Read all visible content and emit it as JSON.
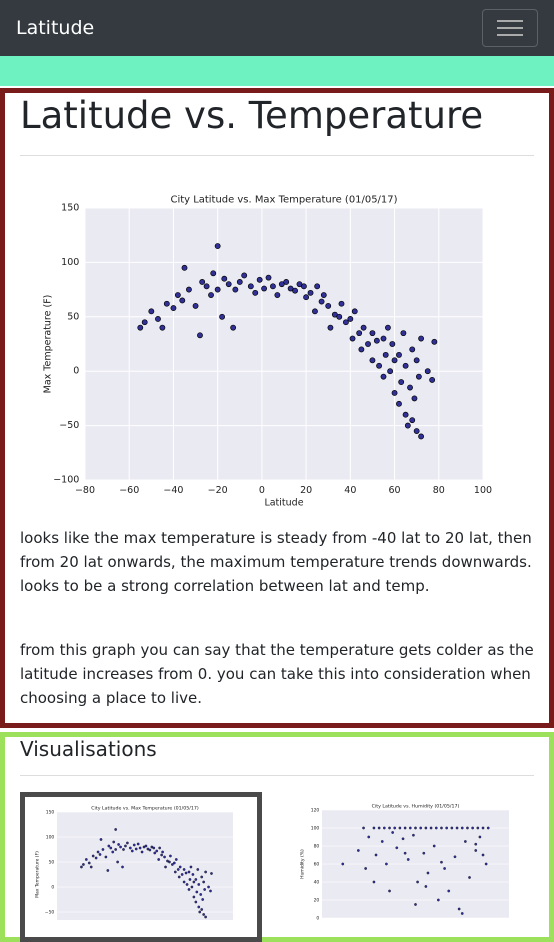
{
  "navbar": {
    "brand": "Latitude"
  },
  "section": {
    "heading": "Latitude vs. Temperature",
    "paragraphs": [
      "looks like the max temperature is steady from -40 lat to 20 lat, then from 20 lat onwards, the maximum temperature trends downwards. looks to be a strong correlation between lat and temp.",
      "from this graph you can say that the temperature gets colder as the latitude increases from 0. you can take this into consideration when choosing a place to live."
    ],
    "chart": {
      "type": "scatter",
      "title": "City Latitude vs. Max Temperature (01/05/17)",
      "xlabel": "Latitude",
      "ylabel": "Max Temperature (F)",
      "color": "#1c1c8c",
      "xlim": [
        -80,
        100
      ],
      "ylim": [
        -100,
        150
      ],
      "xticks": [
        {
          "value": -80,
          "label": "−80"
        },
        {
          "value": -60,
          "label": "−60"
        },
        {
          "value": -40,
          "label": "−40"
        },
        {
          "value": -20,
          "label": "−20"
        },
        0,
        20,
        40,
        60,
        80,
        100
      ],
      "yticks": [
        {
          "value": -100,
          "label": "−100"
        },
        {
          "value": -50,
          "label": "−50"
        },
        0,
        50,
        100,
        150
      ],
      "grid": true,
      "x": [
        -55,
        -53,
        -50,
        -47,
        -45,
        -43,
        -40,
        -38,
        -36,
        -35,
        -33,
        -30,
        -28,
        -27,
        -25,
        -23,
        -22,
        -20,
        -20,
        -18,
        -17,
        -15,
        -13,
        -12,
        -10,
        -8,
        -5,
        -3,
        -1,
        1,
        3,
        5,
        7,
        9,
        11,
        13,
        15,
        17,
        19,
        20,
        22,
        24,
        25,
        27,
        28,
        30,
        31,
        33,
        35,
        36,
        38,
        40,
        41,
        42,
        44,
        45,
        46,
        48,
        50,
        50,
        52,
        53,
        55,
        55,
        56,
        57,
        58,
        59,
        60,
        60,
        62,
        62,
        63,
        64,
        65,
        65,
        66,
        67,
        68,
        68,
        69,
        70,
        70,
        71,
        72,
        72,
        75,
        77,
        78
      ],
      "values": [
        40,
        45,
        55,
        48,
        40,
        62,
        58,
        70,
        65,
        95,
        75,
        60,
        33,
        82,
        78,
        70,
        90,
        115,
        75,
        50,
        85,
        80,
        40,
        75,
        82,
        88,
        78,
        72,
        84,
        76,
        86,
        78,
        70,
        80,
        82,
        76,
        74,
        80,
        78,
        68,
        72,
        55,
        78,
        64,
        70,
        60,
        40,
        52,
        50,
        62,
        45,
        48,
        30,
        55,
        35,
        20,
        40,
        25,
        10,
        35,
        28,
        5,
        30,
        -5,
        15,
        40,
        0,
        25,
        -20,
        10,
        -30,
        15,
        -10,
        35,
        -40,
        5,
        -50,
        -15,
        20,
        -45,
        -25,
        10,
        -55,
        -5,
        -60,
        30,
        0,
        -8,
        27
      ]
    }
  },
  "visualisations": {
    "heading": "Visualisations",
    "thumbnails": [
      {
        "type": "scatter",
        "title": "City Latitude vs. Max Temperature (01/05/17)",
        "ylabel": "Max Temperature (F)",
        "color": "#1c1c8c",
        "xlim": [
          -80,
          100
        ],
        "ylim": [
          -100,
          150
        ],
        "yticks": [
          {
            "value": -50,
            "label": "−50"
          },
          0,
          50,
          100,
          150
        ]
      },
      {
        "type": "scatter",
        "title": "City Latitude vs. Humidity (01/05/17)",
        "ylabel": "Humidity (%)",
        "color": "#1c1c8c",
        "xlim": [
          -80,
          100
        ],
        "ylim": [
          0,
          120
        ],
        "yticks": [
          0,
          20,
          40,
          60,
          80,
          100,
          120
        ],
        "x": [
          -60,
          -45,
          -40,
          -35,
          -30,
          -28,
          -25,
          -22,
          -20,
          -18,
          -15,
          -12,
          -10,
          -8,
          -5,
          -2,
          0,
          3,
          5,
          8,
          10,
          12,
          15,
          18,
          20,
          22,
          25,
          28,
          30,
          32,
          35,
          38,
          40,
          42,
          45,
          48,
          50,
          52,
          55,
          58,
          60,
          62,
          65,
          68,
          70,
          72,
          75,
          78,
          80,
          -38,
          -30,
          -15,
          0,
          10,
          20,
          35,
          55,
          68,
          75
        ],
        "values": [
          60,
          75,
          100,
          90,
          100,
          70,
          100,
          85,
          100,
          60,
          100,
          95,
          100,
          78,
          100,
          88,
          100,
          65,
          100,
          92,
          100,
          40,
          100,
          72,
          100,
          50,
          100,
          80,
          100,
          20,
          100,
          55,
          100,
          30,
          100,
          68,
          100,
          10,
          100,
          85,
          100,
          45,
          100,
          75,
          100,
          90,
          100,
          60,
          100,
          55,
          40,
          30,
          72,
          15,
          35,
          62,
          5,
          82,
          70
        ]
      }
    ]
  }
}
